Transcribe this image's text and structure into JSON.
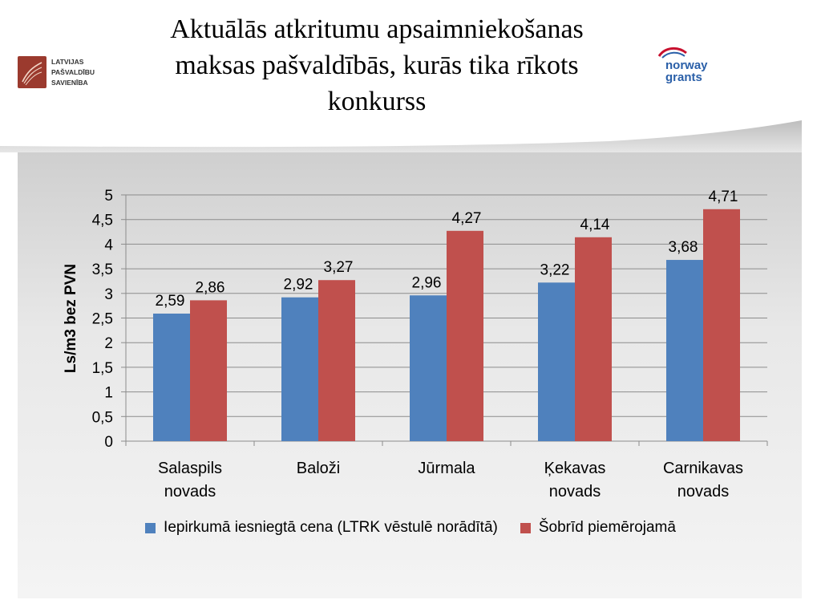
{
  "header": {
    "title_lines": [
      "Aktuālās atkritumu apsaimniekošanas",
      "maksas pašvaldībās, kurās tika rīkots",
      "konkurss"
    ],
    "left_logo_lines": [
      "LATVIJAS",
      "PAŠVALDĪBU",
      "SAVIENĪBA"
    ],
    "right_logo_lines": [
      "norway",
      "grants"
    ]
  },
  "colors": {
    "series1": "#4f81bd",
    "series2": "#c0504d",
    "grid": "#8c8c8c"
  },
  "chart_data": {
    "type": "bar",
    "ylabel": "Ls/m3 bez PVN",
    "ylim": [
      0,
      5
    ],
    "yticks": [
      "0",
      "0,5",
      "1",
      "1,5",
      "2",
      "2,5",
      "3",
      "3,5",
      "4",
      "4,5",
      "5"
    ],
    "grid": true,
    "legend_position": "bottom",
    "categories": [
      [
        "Salaspils",
        "novads"
      ],
      [
        "Baloži"
      ],
      [
        "Jūrmala"
      ],
      [
        "Ķekavas",
        "novads"
      ],
      [
        "Carnikavas",
        "novads"
      ]
    ],
    "series": [
      {
        "name": "Iepirkumā iesniegtā cena (LTRK vēstulē norādītā)",
        "values": [
          2.59,
          2.92,
          2.96,
          3.22,
          3.68
        ],
        "labels": [
          "2,59",
          "2,92",
          "2,96",
          "3,22",
          "3,68"
        ]
      },
      {
        "name": "Šobrīd piemērojamā",
        "values": [
          2.86,
          3.27,
          4.27,
          4.14,
          4.71
        ],
        "labels": [
          "2,86",
          "3,27",
          "4,27",
          "4,14",
          "4,71"
        ]
      }
    ]
  }
}
